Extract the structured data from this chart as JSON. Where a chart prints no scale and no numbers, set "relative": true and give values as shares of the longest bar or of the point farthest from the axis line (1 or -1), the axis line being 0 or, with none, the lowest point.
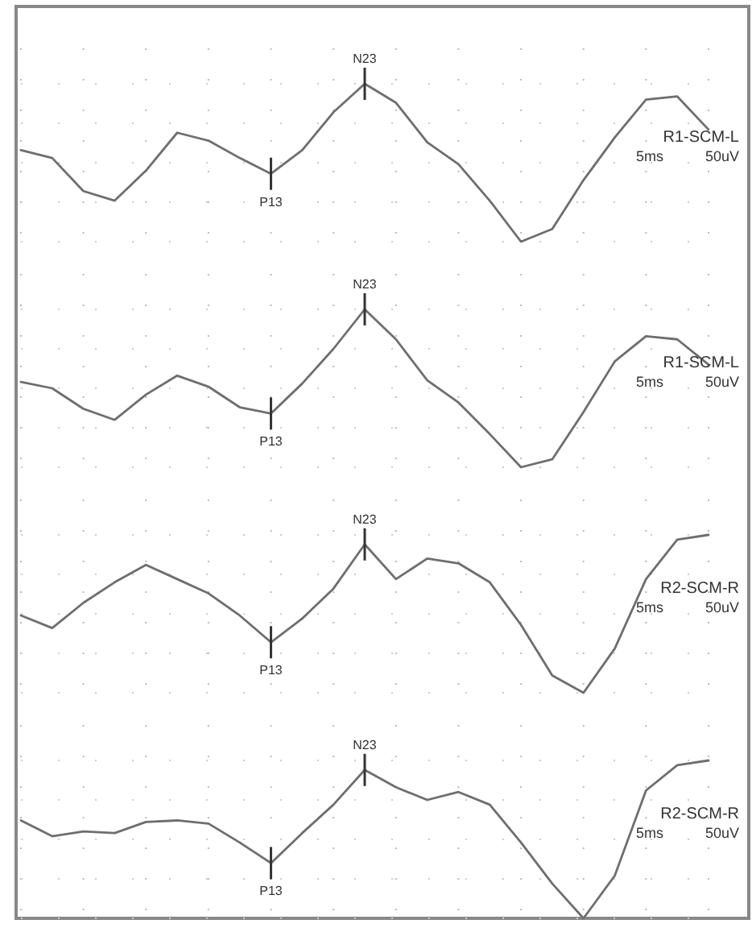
{
  "chart_data": [
    {
      "type": "line",
      "relative": true,
      "grid": true,
      "categories": [
        null,
        null,
        null,
        null,
        null,
        null,
        null,
        null,
        null,
        null,
        null,
        null,
        null,
        null,
        null,
        null,
        null,
        null,
        null,
        null,
        null,
        null,
        null
      ],
      "series": [
        {
          "color": "#6e6e6e",
          "values": [
            0.58,
            0.53,
            0.32,
            0.26,
            0.45,
            0.69,
            0.64,
            0.53,
            0.43,
            0.58,
            0.82,
            1,
            0.88,
            0.63,
            0.49,
            0.26,
            0,
            0.08,
            0.39,
            0.66,
            0.9,
            0.92,
            0.71
          ]
        }
      ],
      "annotations": [
        {
          "text": "P13",
          "y": 0.43
        },
        {
          "text": "N23",
          "y": 1
        },
        "R1-SCM-L",
        "5ms",
        "50uV"
      ]
    },
    {
      "type": "line",
      "relative": true,
      "grid": true,
      "categories": [
        null,
        null,
        null,
        null,
        null,
        null,
        null,
        null,
        null,
        null,
        null,
        null,
        null,
        null,
        null,
        null,
        null,
        null,
        null,
        null,
        null,
        null,
        null
      ],
      "series": [
        {
          "color": "#6e6e6e",
          "values": [
            0.54,
            0.5,
            0.37,
            0.3,
            0.46,
            0.58,
            0.51,
            0.38,
            0.34,
            0.53,
            0.75,
            1,
            0.81,
            0.55,
            0.41,
            0.21,
            0,
            0.05,
            0.35,
            0.67,
            0.83,
            0.81,
            0.65
          ]
        }
      ],
      "annotations": [
        {
          "text": "P13",
          "y": 0.34
        },
        {
          "text": "N23",
          "y": 1
        },
        "R1-SCM-L",
        "5ms",
        "50uV"
      ]
    },
    {
      "type": "line",
      "relative": true,
      "grid": true,
      "categories": [
        null,
        null,
        null,
        null,
        null,
        null,
        null,
        null,
        null,
        null,
        null,
        null,
        null,
        null,
        null,
        null,
        null,
        null,
        null,
        null,
        null,
        null,
        null
      ],
      "series": [
        {
          "color": "#6e6e6e",
          "values": [
            0.49,
            0.41,
            0.57,
            0.7,
            0.81,
            0.72,
            0.63,
            0.49,
            0.32,
            0.47,
            0.66,
            0.94,
            0.72,
            0.85,
            0.82,
            0.7,
            0.43,
            0.11,
            0,
            0.28,
            0.72,
            0.97,
            1
          ]
        }
      ],
      "annotations": [
        {
          "text": "P13",
          "y": 0.32
        },
        {
          "text": "N23",
          "y": 0.94
        },
        "R2-SCM-R",
        "5ms",
        "50uV"
      ]
    },
    {
      "type": "line",
      "relative": true,
      "grid": true,
      "categories": [
        null,
        null,
        null,
        null,
        null,
        null,
        null,
        null,
        null,
        null,
        null,
        null,
        null,
        null,
        null,
        null,
        null,
        null,
        null,
        null,
        null,
        null,
        null
      ],
      "series": [
        {
          "color": "#6e6e6e",
          "values": [
            0.62,
            0.52,
            0.55,
            0.54,
            0.61,
            0.62,
            0.6,
            0.48,
            0.35,
            0.54,
            0.72,
            0.94,
            0.83,
            0.75,
            0.8,
            0.72,
            0.48,
            0.22,
            0,
            0.27,
            0.81,
            0.97,
            1
          ]
        }
      ],
      "annotations": [
        {
          "text": "P13",
          "y": 0.35
        },
        {
          "text": "N23",
          "y": 0.94
        },
        "R2-SCM-R",
        "5ms",
        "50uV"
      ]
    }
  ]
}
